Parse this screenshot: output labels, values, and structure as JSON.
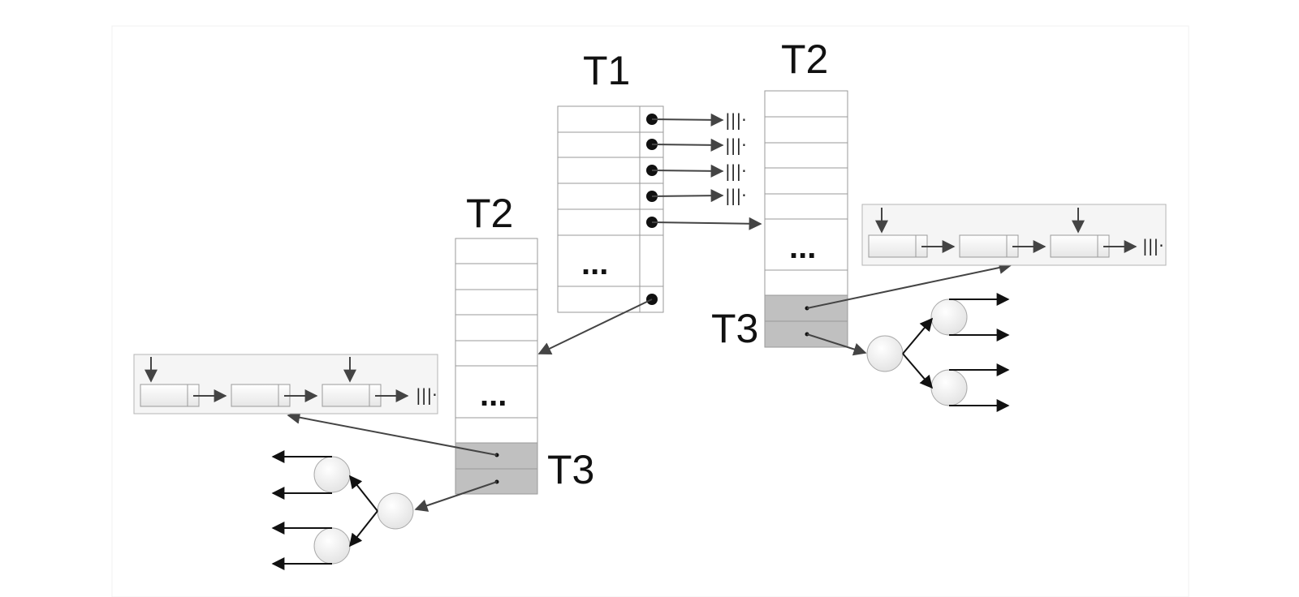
{
  "labels": {
    "t1": "T1",
    "t2_right": "T2",
    "t2_left": "T2",
    "t3_right": "T3",
    "t3_left": "T3"
  },
  "ellipsis": "...",
  "terminator": "|||·",
  "colors": {
    "cell_fill": "#ffffff",
    "cell_stroke": "#9a9a9a",
    "t3_fill": "#c0c0c0",
    "arrow": "#444444",
    "node_fill": "#f3f3f3",
    "panel_fill": "#f5f5f5"
  }
}
